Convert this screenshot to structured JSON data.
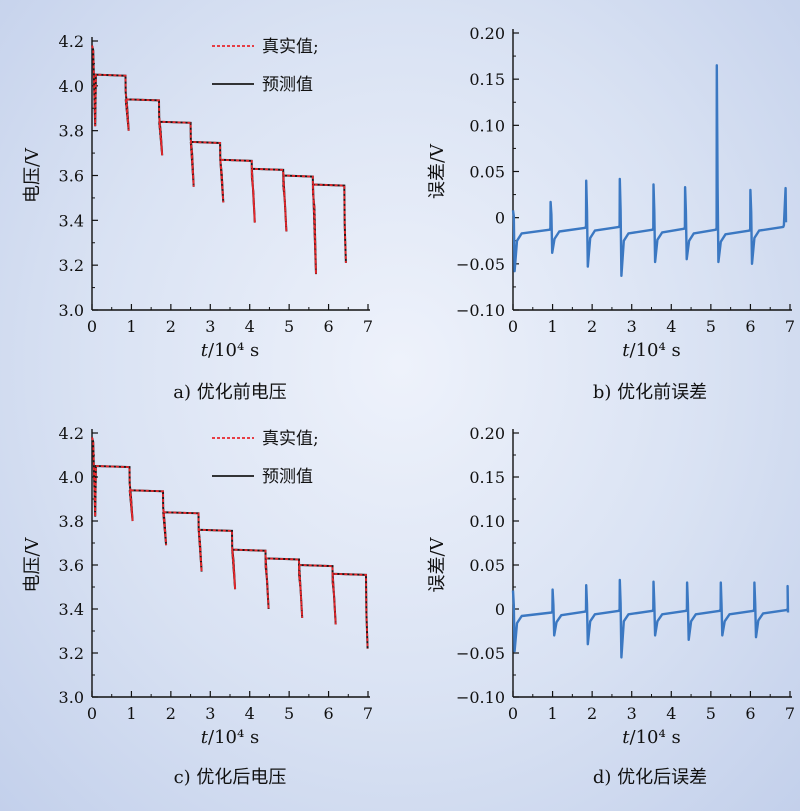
{
  "figure": {
    "colors": {
      "true": "#e8262b",
      "pred": "#1a1a1a",
      "error": "#3b78c2",
      "axis": "#111111"
    },
    "panels": [
      {
        "id": "a",
        "caption": "a) 优化前电压",
        "chart_data": {
          "type": "line",
          "xlabel_italic": "t",
          "xlabel_rest": "/10⁴ s",
          "ylabel": "电压/V",
          "xlim": [
            0,
            7
          ],
          "ylim": [
            3.0,
            4.2
          ],
          "xticks": [
            "0",
            "1",
            "2",
            "3",
            "4",
            "5",
            "6",
            "7"
          ],
          "yticks": [
            "3.0",
            "3.2",
            "3.4",
            "3.6",
            "3.8",
            "4.0",
            "4.2"
          ],
          "legend": {
            "position": "top-right",
            "entries": [
              "真实值;",
              "预测值"
            ]
          },
          "plateaus": [
            {
              "start": 0.1,
              "end": 0.85,
              "v": 4.05,
              "dip": 3.8
            },
            {
              "start": 0.85,
              "end": 1.7,
              "v": 3.94,
              "dip": 3.69
            },
            {
              "start": 1.7,
              "end": 2.5,
              "v": 3.84,
              "dip": 3.55
            },
            {
              "start": 2.5,
              "end": 3.25,
              "v": 3.75,
              "dip": 3.48
            },
            {
              "start": 3.25,
              "end": 4.05,
              "v": 3.67,
              "dip": 3.39
            },
            {
              "start": 4.05,
              "end": 4.85,
              "v": 3.63,
              "dip": 3.35
            },
            {
              "start": 4.85,
              "end": 5.6,
              "v": 3.6,
              "dip": 3.16
            },
            {
              "start": 5.6,
              "end": 6.4,
              "v": 3.56,
              "dip": 3.28
            }
          ],
          "initial_v": 4.18,
          "final_v": 3.21
        }
      },
      {
        "id": "b",
        "caption": "b) 优化前误差",
        "chart_data": {
          "type": "line",
          "xlabel_italic": "t",
          "xlabel_rest": "/10⁴ s",
          "ylabel": "误差/V",
          "xlim": [
            0,
            7
          ],
          "ylim": [
            -0.1,
            0.2
          ],
          "xticks": [
            "0",
            "1",
            "2",
            "3",
            "4",
            "5",
            "6",
            "7"
          ],
          "yticks": [
            "−0.10",
            "−0.05",
            "0",
            "0.05",
            "0.10",
            "0.15",
            "0.20"
          ],
          "series": [
            {
              "x_start": 0.0,
              "x_end": 0.95,
              "up": 0.008,
              "down": -0.058,
              "base": -0.015
            },
            {
              "x_start": 0.95,
              "x_end": 1.85,
              "up": 0.017,
              "down": -0.038,
              "base": -0.013
            },
            {
              "x_start": 1.85,
              "x_end": 2.7,
              "up": 0.04,
              "down": -0.053,
              "base": -0.012
            },
            {
              "x_start": 2.7,
              "x_end": 3.55,
              "up": 0.042,
              "down": -0.063,
              "base": -0.015
            },
            {
              "x_start": 3.55,
              "x_end": 4.35,
              "up": 0.036,
              "down": -0.048,
              "base": -0.014
            },
            {
              "x_start": 4.35,
              "x_end": 5.15,
              "up": 0.033,
              "down": -0.045,
              "base": -0.015
            },
            {
              "x_start": 5.15,
              "x_end": 6.0,
              "up": 0.165,
              "down": -0.048,
              "base": -0.016
            },
            {
              "x_start": 6.0,
              "x_end": 6.85,
              "up": 0.03,
              "down": -0.05,
              "base": -0.012
            }
          ],
          "tail": {
            "x": 6.9,
            "up": 0.032,
            "end": -0.005
          }
        }
      },
      {
        "id": "c",
        "caption": "c) 优化后电压",
        "chart_data": {
          "type": "line",
          "xlabel_italic": "t",
          "xlabel_rest": "/10⁴ s",
          "ylabel": "电压/V",
          "xlim": [
            0,
            7
          ],
          "ylim": [
            3.0,
            4.2
          ],
          "xticks": [
            "0",
            "1",
            "2",
            "3",
            "4",
            "5",
            "6",
            "7"
          ],
          "yticks": [
            "3.0",
            "3.2",
            "3.4",
            "3.6",
            "3.8",
            "4.0",
            "4.2"
          ],
          "legend": {
            "position": "top-right",
            "entries": [
              "真实值;",
              "预测值"
            ]
          },
          "plateaus": [
            {
              "start": 0.1,
              "end": 0.95,
              "v": 4.05,
              "dip": 3.8
            },
            {
              "start": 0.95,
              "end": 1.8,
              "v": 3.94,
              "dip": 3.69
            },
            {
              "start": 1.8,
              "end": 2.7,
              "v": 3.84,
              "dip": 3.57
            },
            {
              "start": 2.7,
              "end": 3.55,
              "v": 3.76,
              "dip": 3.49
            },
            {
              "start": 3.55,
              "end": 4.4,
              "v": 3.67,
              "dip": 3.4
            },
            {
              "start": 4.4,
              "end": 5.25,
              "v": 3.63,
              "dip": 3.36
            },
            {
              "start": 5.25,
              "end": 6.1,
              "v": 3.6,
              "dip": 3.33
            },
            {
              "start": 6.1,
              "end": 6.95,
              "v": 3.56,
              "dip": 3.3
            }
          ],
          "initial_v": 4.18,
          "final_v": 3.22
        }
      },
      {
        "id": "d",
        "caption": "d) 优化后误差",
        "chart_data": {
          "type": "line",
          "xlabel_italic": "t",
          "xlabel_rest": "/10⁴ s",
          "ylabel": "误差/V",
          "xlim": [
            0,
            7
          ],
          "ylim": [
            -0.1,
            0.2
          ],
          "xticks": [
            "0",
            "1",
            "2",
            "3",
            "4",
            "5",
            "6",
            "7"
          ],
          "yticks": [
            "−0.10",
            "−0.05",
            "0",
            "0.05",
            "0.10",
            "0.15",
            "0.20"
          ],
          "series": [
            {
              "x_start": 0.0,
              "x_end": 1.0,
              "up": 0.021,
              "down": -0.048,
              "base": -0.006
            },
            {
              "x_start": 1.0,
              "x_end": 1.85,
              "up": 0.022,
              "down": -0.03,
              "base": -0.005
            },
            {
              "x_start": 1.85,
              "x_end": 2.7,
              "up": 0.027,
              "down": -0.04,
              "base": -0.004
            },
            {
              "x_start": 2.7,
              "x_end": 3.55,
              "up": 0.033,
              "down": -0.055,
              "base": -0.004
            },
            {
              "x_start": 3.55,
              "x_end": 4.4,
              "up": 0.031,
              "down": -0.03,
              "base": -0.004
            },
            {
              "x_start": 4.4,
              "x_end": 5.25,
              "up": 0.03,
              "down": -0.035,
              "base": -0.004
            },
            {
              "x_start": 5.25,
              "x_end": 6.1,
              "up": 0.03,
              "down": -0.03,
              "base": -0.004
            },
            {
              "x_start": 6.1,
              "x_end": 6.95,
              "up": 0.03,
              "down": -0.032,
              "base": -0.003
            }
          ],
          "tail": {
            "x": 6.95,
            "up": 0.026,
            "end": -0.004
          }
        }
      }
    ]
  }
}
